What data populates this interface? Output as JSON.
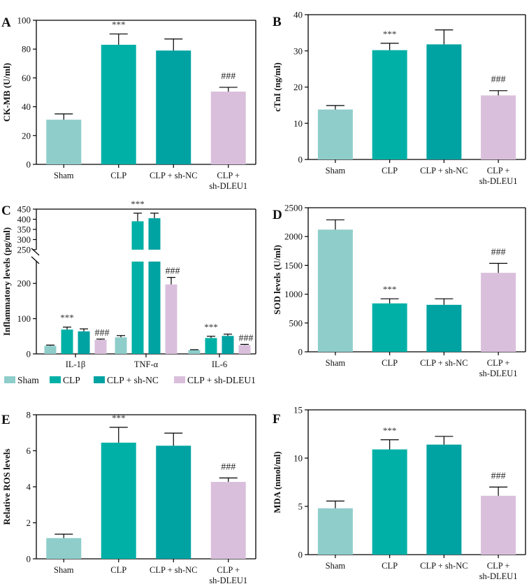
{
  "colors": {
    "Sham": "#8ecdca",
    "CLP": "#00b0a6",
    "CLP + sh-NC": "#00a2a2",
    "CLP + sh-DLEU1": "#dabfdc"
  },
  "chart_data": [
    {
      "panel": "A",
      "type": "bar",
      "categories": [
        "Sham",
        "CLP",
        "CLP + sh-NC",
        "CLP + sh-DLEU1"
      ],
      "category_lines": [
        [
          "Sham"
        ],
        [
          "CLP"
        ],
        [
          "CLP + sh-NC"
        ],
        [
          "CLP +",
          "sh-DLEU1"
        ]
      ],
      "values": [
        31,
        83,
        79,
        50.5
      ],
      "errors": [
        4,
        7.5,
        8,
        3
      ],
      "significance": [
        "",
        "***",
        "",
        "###"
      ],
      "ylabel": "CK-MB (U/ml)",
      "xlabel": "",
      "ylim": [
        0,
        100
      ],
      "yticks": [
        0,
        20,
        40,
        60,
        80,
        100
      ],
      "grid": false
    },
    {
      "panel": "B",
      "type": "bar",
      "categories": [
        "Sham",
        "CLP",
        "CLP + sh-NC",
        "CLP + sh-DLEU1"
      ],
      "category_lines": [
        [
          "Sham"
        ],
        [
          "CLP"
        ],
        [
          "CLP + sh-NC"
        ],
        [
          "CLP +",
          "sh-DLEU1"
        ]
      ],
      "values": [
        13.8,
        30.2,
        31.8,
        17.7
      ],
      "errors": [
        1.1,
        1.9,
        4.0,
        1.3
      ],
      "significance": [
        "",
        "***",
        "",
        "###"
      ],
      "ylabel": "cTnI (ng/ml)",
      "xlabel": "",
      "ylim": [
        0,
        40
      ],
      "yticks": [
        0,
        10,
        20,
        30,
        40
      ],
      "grid": false
    },
    {
      "panel": "C",
      "type": "bar",
      "grouped": true,
      "categories": [
        "IL-1β",
        "TNF-α",
        "IL-6"
      ],
      "series": [
        {
          "name": "Sham",
          "values": [
            23,
            47,
            11
          ],
          "errors": [
            2,
            5,
            1
          ]
        },
        {
          "name": "CLP",
          "values": [
            69,
            390,
            45
          ],
          "errors": [
            7,
            40,
            5
          ]
        },
        {
          "name": "CLP + sh-NC",
          "values": [
            64,
            405,
            51
          ],
          "errors": [
            7,
            25,
            5
          ]
        },
        {
          "name": "CLP + sh-DLEU1",
          "values": [
            40,
            197,
            25
          ],
          "errors": [
            2,
            20,
            2
          ]
        }
      ],
      "significance": [
        [
          "",
          "***",
          "",
          "###"
        ],
        [
          "",
          "***",
          "",
          "###"
        ],
        [
          "",
          "***",
          "",
          "###"
        ]
      ],
      "ylabel": "Inflammatory levels (pg/ml)",
      "xlabel": "",
      "axis_break": {
        "lower": [
          0,
          250
        ],
        "upper": [
          250,
          450
        ]
      },
      "yticks_lower": [
        0,
        100,
        200
      ],
      "yticks_upper": [
        250,
        300,
        350,
        400,
        450
      ],
      "legend": [
        "Sham",
        "CLP",
        "CLP + sh-NC",
        "CLP + sh-DLEU1"
      ],
      "legend_position": "bottom",
      "grid": false
    },
    {
      "panel": "D",
      "type": "bar",
      "categories": [
        "Sham",
        "CLP",
        "CLP + sh-NC",
        "CLP + sh-DLEU1"
      ],
      "category_lines": [
        [
          "Sham"
        ],
        [
          "CLP"
        ],
        [
          "CLP + sh-NC"
        ],
        [
          "CLP +",
          "sh-DLEU1"
        ]
      ],
      "values": [
        2120,
        840,
        815,
        1370
      ],
      "errors": [
        170,
        80,
        105,
        165
      ],
      "significance": [
        "",
        "***",
        "",
        "###"
      ],
      "ylabel": "SOD levels (U/ml)",
      "xlabel": "",
      "ylim": [
        0,
        2500
      ],
      "yticks": [
        0,
        500,
        1000,
        1500,
        2000,
        2500
      ],
      "grid": false
    },
    {
      "panel": "E",
      "type": "bar",
      "categories": [
        "Sham",
        "CLP",
        "CLP + sh-NC",
        "CLP + sh-DLEU1"
      ],
      "category_lines": [
        [
          "Sham"
        ],
        [
          "CLP"
        ],
        [
          "CLP + sh-NC"
        ],
        [
          "CLP +",
          "sh-DLEU1"
        ]
      ],
      "values": [
        1.15,
        6.45,
        6.28,
        4.27
      ],
      "errors": [
        0.22,
        0.85,
        0.7,
        0.22
      ],
      "significance": [
        "",
        "***",
        "",
        "###"
      ],
      "ylabel": "Relative ROS levels",
      "xlabel": "",
      "ylim": [
        0,
        8
      ],
      "yticks": [
        0,
        2,
        4,
        6,
        8
      ],
      "grid": false
    },
    {
      "panel": "F",
      "type": "bar",
      "categories": [
        "Sham",
        "CLP",
        "CLP + sh-NC",
        "CLP + sh-DLEU1"
      ],
      "category_lines": [
        [
          "Sham"
        ],
        [
          "CLP"
        ],
        [
          "CLP + sh-NC"
        ],
        [
          "CLP +",
          "sh-DLEU1"
        ]
      ],
      "values": [
        4.8,
        10.9,
        11.4,
        6.1
      ],
      "errors": [
        0.75,
        1.0,
        0.85,
        0.9
      ],
      "significance": [
        "",
        "***",
        "",
        "###"
      ],
      "ylabel": "MDA (nmol/ml)",
      "xlabel": "",
      "ylim": [
        0,
        15
      ],
      "yticks": [
        0,
        5,
        10,
        15
      ],
      "grid": false
    }
  ]
}
